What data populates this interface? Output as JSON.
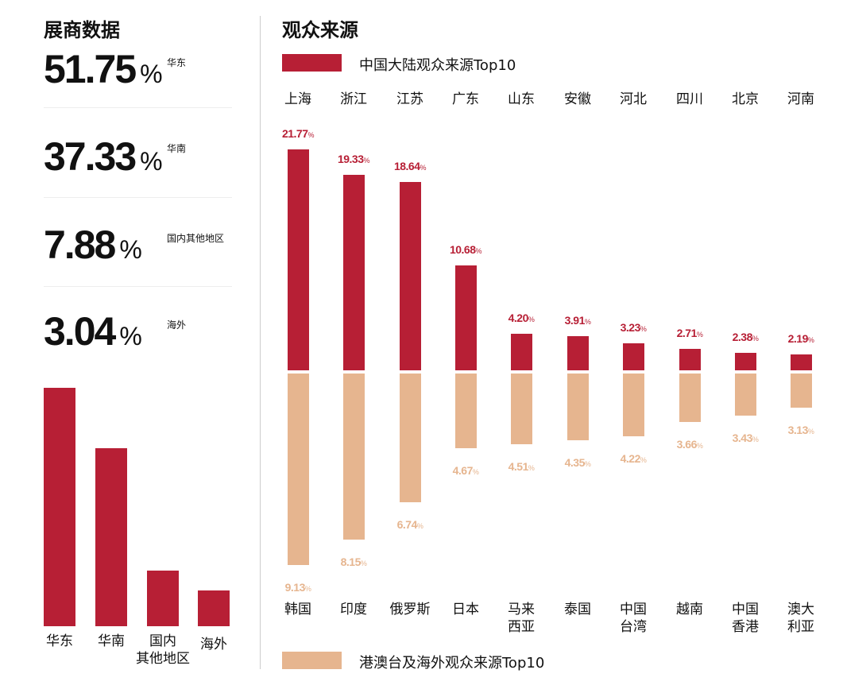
{
  "colors": {
    "mainland": "#b71f35",
    "overseas": "#e6b58f",
    "text": "#111111"
  },
  "exhibitors": {
    "title": "展商数据",
    "percent_sign": "%",
    "stats": [
      {
        "value": "51.75",
        "label": "华东"
      },
      {
        "value": "37.33",
        "label": "华南"
      },
      {
        "value": "7.88",
        "label": "国内其他地区"
      },
      {
        "value": "3.04",
        "label": "海外"
      }
    ]
  },
  "audience": {
    "title": "观众来源"
  },
  "chart_data": [
    {
      "type": "bar",
      "categories": [
        "华东",
        "华南",
        "国内\n其他地区",
        "海外"
      ],
      "values": [
        51.75,
        37.33,
        7.88,
        3.04
      ],
      "unit": "%"
    },
    {
      "type": "bar",
      "series": [
        {
          "name": "中国大陆观众来源Top10",
          "categories": [
            "上海",
            "浙江",
            "江苏",
            "广东",
            "山东",
            "安徽",
            "河北",
            "四川",
            "北京",
            "河南"
          ],
          "values": [
            21.77,
            19.33,
            18.64,
            10.68,
            4.2,
            3.91,
            3.23,
            2.71,
            2.38,
            2.19
          ],
          "labels": [
            "21.77",
            "19.33",
            "18.64",
            "10.68",
            "4.20",
            "3.91",
            "3.23",
            "2.71",
            "2.38",
            "2.19"
          ]
        },
        {
          "name": "港澳台及海外观众来源Top10",
          "categories": [
            "韩国",
            "印度",
            "俄罗斯",
            "日本",
            "马来\n西亚",
            "泰国",
            "中国\n台湾",
            "越南",
            "中国\n香港",
            "澳大\n利亚"
          ],
          "values": [
            9.13,
            8.15,
            6.74,
            4.67,
            4.51,
            4.35,
            4.22,
            3.66,
            3.43,
            3.13
          ],
          "labels": [
            "9.13",
            "8.15",
            "6.74",
            "4.67",
            "4.51",
            "4.35",
            "4.22",
            "3.66",
            "3.43",
            "3.13"
          ]
        }
      ],
      "unit": "%",
      "legend": [
        "top",
        "bottom"
      ]
    }
  ]
}
